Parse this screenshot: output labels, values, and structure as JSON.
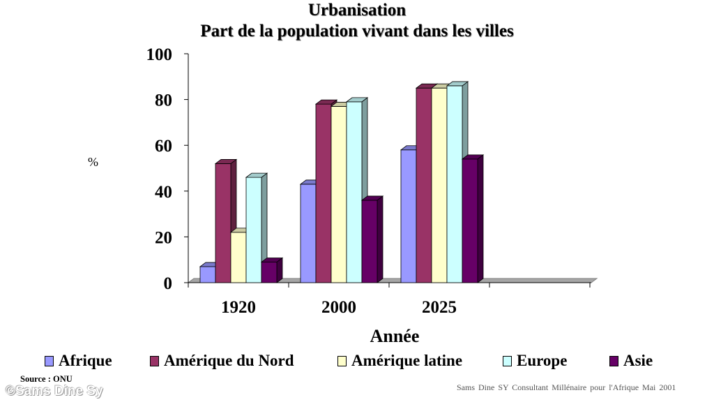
{
  "chart_data": {
    "type": "bar",
    "title": "Urbanisation",
    "subtitle": "Part de la population vivant dans les villes",
    "xlabel": "Année",
    "ylabel": "%",
    "categories": [
      "1920",
      "2000",
      "2025"
    ],
    "ylim": [
      0,
      100
    ],
    "yticks": [
      "0",
      "20",
      "40",
      "60",
      "80",
      "100"
    ],
    "series": [
      {
        "name": "Afrique",
        "values": [
          7,
          43,
          58
        ],
        "color": "#9999ff"
      },
      {
        "name": "Amérique du Nord",
        "values": [
          52,
          78,
          85
        ],
        "color": "#993366"
      },
      {
        "name": "Amérique latine",
        "values": [
          22,
          77,
          85
        ],
        "color": "#ffffcc"
      },
      {
        "name": "Europe",
        "values": [
          46,
          79,
          86
        ],
        "color": "#ccffff"
      },
      {
        "name": "Asie",
        "values": [
          9,
          36,
          54
        ],
        "color": "#660066"
      }
    ],
    "legend_position": "bottom",
    "grid": false
  },
  "source": "Source : ONU",
  "watermark": "©Sams Dine Sy",
  "footer": "Sams Dine SY Consultant Millénaire pour l'Afrique Mai 2001"
}
